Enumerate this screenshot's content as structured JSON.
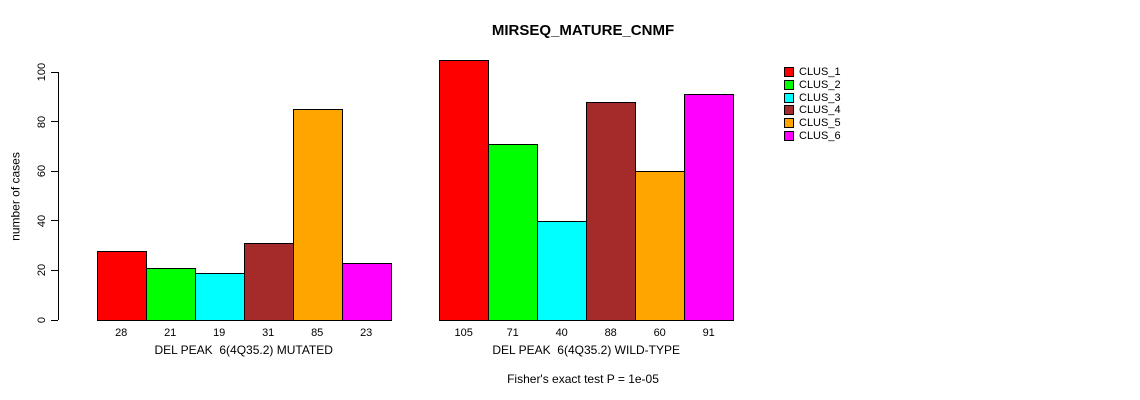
{
  "chart_data": {
    "type": "bar",
    "title": "MIRSEQ_MATURE_CNMF",
    "ylabel": "number of cases",
    "xlabel": "",
    "ylim": [
      0,
      105
    ],
    "yticks": [
      0,
      20,
      40,
      60,
      80,
      100
    ],
    "grid": false,
    "legend_position": "top-right",
    "bar_value_labels": true,
    "categories": [
      "DEL PEAK  6(4Q35.2) MUTATED",
      "DEL PEAK  6(4Q35.2) WILD-TYPE"
    ],
    "series": [
      {
        "name": "CLUS_1",
        "color": "#FF0000",
        "values": [
          28,
          105
        ]
      },
      {
        "name": "CLUS_2",
        "color": "#00FF00",
        "values": [
          21,
          71
        ]
      },
      {
        "name": "CLUS_3",
        "color": "#00FFFF",
        "values": [
          19,
          40
        ]
      },
      {
        "name": "CLUS_4",
        "color": "#A52A2A",
        "values": [
          31,
          88
        ]
      },
      {
        "name": "CLUS_5",
        "color": "#FFA500",
        "values": [
          85,
          60
        ]
      },
      {
        "name": "CLUS_6",
        "color": "#FF00FF",
        "values": [
          23,
          91
        ]
      }
    ],
    "footnote": "Fisher's exact test P = 1e-05"
  }
}
